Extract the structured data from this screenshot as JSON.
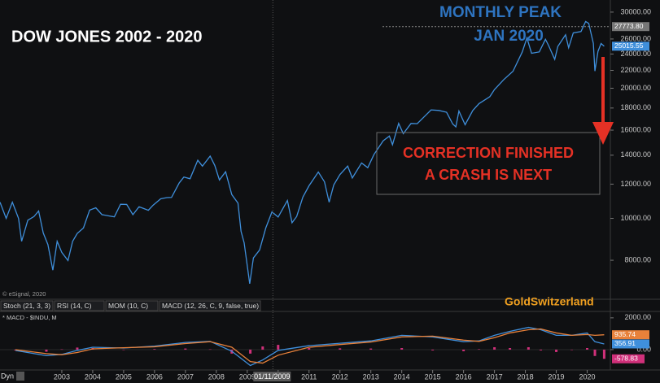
{
  "chart_data": [
    {
      "type": "line",
      "title": "DOW JONES 2002 - 2020",
      "peak_note": [
        "MONTHLY PEAK",
        "JAN 2020"
      ],
      "callout": [
        "CORRECTION FINISHED",
        "A CRASH IS NEXT"
      ],
      "watermark": "GoldSwitzerland",
      "source": "© eSignal, 2020",
      "color": "#3f8fdb",
      "log_scale": true,
      "xlim": [
        2001.0,
        2020.75
      ],
      "ylim": [
        6500,
        32000
      ],
      "yticks": [
        {
          "value": 30000,
          "label": "30000.00"
        },
        {
          "value": 26000,
          "label": "26000.00"
        },
        {
          "value": 24000,
          "label": "24000.00"
        },
        {
          "value": 22000,
          "label": "22000.00"
        },
        {
          "value": 20000,
          "label": "20000.00"
        },
        {
          "value": 18000,
          "label": "18000.00"
        },
        {
          "value": 16000,
          "label": "16000.00"
        },
        {
          "value": 14000,
          "label": "14000.00"
        },
        {
          "value": 12000,
          "label": "12000.00"
        },
        {
          "value": 10000,
          "label": "10000.00"
        },
        {
          "value": 8000,
          "label": "8000.00"
        }
      ],
      "reference_line": {
        "value": 27773.8,
        "label": "27773.80"
      },
      "crosshair": {
        "value": 2009.83,
        "label": "01/11/2009"
      },
      "x": [
        2001.0,
        2001.2,
        2001.4,
        2001.6,
        2001.7,
        2001.9,
        2002.1,
        2002.25,
        2002.4,
        2002.55,
        2002.71,
        2002.85,
        2003.0,
        2003.2,
        2003.35,
        2003.5,
        2003.7,
        2003.9,
        2004.1,
        2004.3,
        2004.5,
        2004.7,
        2004.9,
        2005.1,
        2005.3,
        2005.5,
        2005.8,
        2005.95,
        2006.2,
        2006.4,
        2006.55,
        2006.8,
        2006.95,
        2007.15,
        2007.4,
        2007.55,
        2007.8,
        2007.95,
        2008.1,
        2008.3,
        2008.5,
        2008.7,
        2008.8,
        2008.9,
        2009.08,
        2009.2,
        2009.4,
        2009.6,
        2009.8,
        2010.0,
        2010.3,
        2010.45,
        2010.6,
        2010.8,
        2011.0,
        2011.3,
        2011.5,
        2011.65,
        2011.8,
        2012.0,
        2012.25,
        2012.4,
        2012.7,
        2012.9,
        2013.1,
        2013.4,
        2013.6,
        2013.7,
        2013.9,
        2014.05,
        2014.3,
        2014.5,
        2014.8,
        2014.95,
        2015.2,
        2015.45,
        2015.65,
        2015.75,
        2015.85,
        2016.05,
        2016.3,
        2016.5,
        2016.85,
        2017.0,
        2017.3,
        2017.6,
        2017.9,
        2018.05,
        2018.2,
        2018.45,
        2018.65,
        2018.75,
        2018.95,
        2019.05,
        2019.3,
        2019.4,
        2019.55,
        2019.8,
        2019.95,
        2020.05,
        2020.2,
        2020.25,
        2020.35,
        2020.45,
        2020.55
      ],
      "values": [
        10900,
        10000,
        10900,
        10000,
        8850,
        9900,
        10100,
        10400,
        9250,
        8700,
        7590,
        8850,
        8340,
        7990,
        8850,
        9230,
        9500,
        10450,
        10580,
        10200,
        10140,
        10080,
        10780,
        10770,
        10200,
        10640,
        10440,
        10720,
        11100,
        11170,
        11180,
        12080,
        12460,
        12350,
        13630,
        13210,
        13930,
        13260,
        12270,
        12820,
        11350,
        10850,
        9330,
        8780,
        7060,
        8100,
        8450,
        9500,
        10350,
        10070,
        11000,
        9770,
        10100,
        11200,
        11900,
        12800,
        12150,
        10900,
        11950,
        12630,
        13210,
        12400,
        13430,
        13100,
        14050,
        15120,
        15500,
        14800,
        16580,
        15700,
        16580,
        16560,
        17390,
        17820,
        17770,
        17600,
        16530,
        16280,
        17720,
        16470,
        17770,
        18430,
        19120,
        19860,
        20940,
        21890,
        24270,
        26150,
        24100,
        24270,
        25960,
        25120,
        23330,
        24990,
        26590,
        24820,
        26860,
        27050,
        28540,
        28250,
        25400,
        21920,
        24350,
        25380,
        25015.55
      ]
    },
    {
      "type": "line",
      "title": "* MACD - $INDU, M",
      "tabs": [
        "Stoch (21, 3, 3)",
        "RSI (14, C)",
        "MOM (10, C)",
        "MACD (12, 26, C, 9, false, true)"
      ],
      "footer_label": "Dyn",
      "xlim": [
        2001.0,
        2020.75
      ],
      "xticks": [
        2003,
        2004,
        2005,
        2006,
        2007,
        2008,
        2009,
        2010,
        2011,
        2012,
        2013,
        2014,
        2015,
        2016,
        2017,
        2018,
        2019,
        2020
      ],
      "ylim": [
        -1230,
        2300
      ],
      "yticks": [
        {
          "value": 2000,
          "label": "2000.00"
        },
        {
          "value": 0,
          "label": "0.00"
        }
      ],
      "x": [
        2001.5,
        2002.5,
        2003.0,
        2003.5,
        2004.0,
        2005.0,
        2006.0,
        2007.0,
        2007.8,
        2008.5,
        2009.1,
        2009.5,
        2010.0,
        2011.0,
        2012.0,
        2013.0,
        2014.0,
        2015.0,
        2016.0,
        2016.5,
        2017.0,
        2017.5,
        2018.1,
        2018.5,
        2019.0,
        2019.5,
        2020.0,
        2020.25,
        2020.55
      ],
      "series": [
        {
          "color": "#3f8fdb",
          "values": [
            -50,
            -380,
            -300,
            -50,
            150,
            100,
            220,
            450,
            520,
            -100,
            -1000,
            -650,
            -50,
            250,
            400,
            550,
            900,
            800,
            500,
            550,
            900,
            1150,
            1400,
            1250,
            900,
            900,
            1050,
            500,
            356.91
          ]
        },
        {
          "color": "#e8813a",
          "values": [
            0,
            -250,
            -320,
            -180,
            50,
            120,
            180,
            380,
            500,
            150,
            -750,
            -850,
            -350,
            150,
            320,
            480,
            800,
            850,
            600,
            520,
            750,
            1050,
            1250,
            1300,
            1050,
            900,
            950,
            900,
            935.74
          ]
        }
      ],
      "histogram": {
        "color": "#d0307a",
        "values": [
          -50,
          -130,
          20,
          130,
          100,
          -20,
          40,
          70,
          20,
          -250,
          -250,
          200,
          300,
          100,
          80,
          70,
          100,
          -50,
          -100,
          30,
          150,
          100,
          150,
          -50,
          -150,
          0,
          100,
          -400,
          -578.83
        ]
      }
    }
  ]
}
